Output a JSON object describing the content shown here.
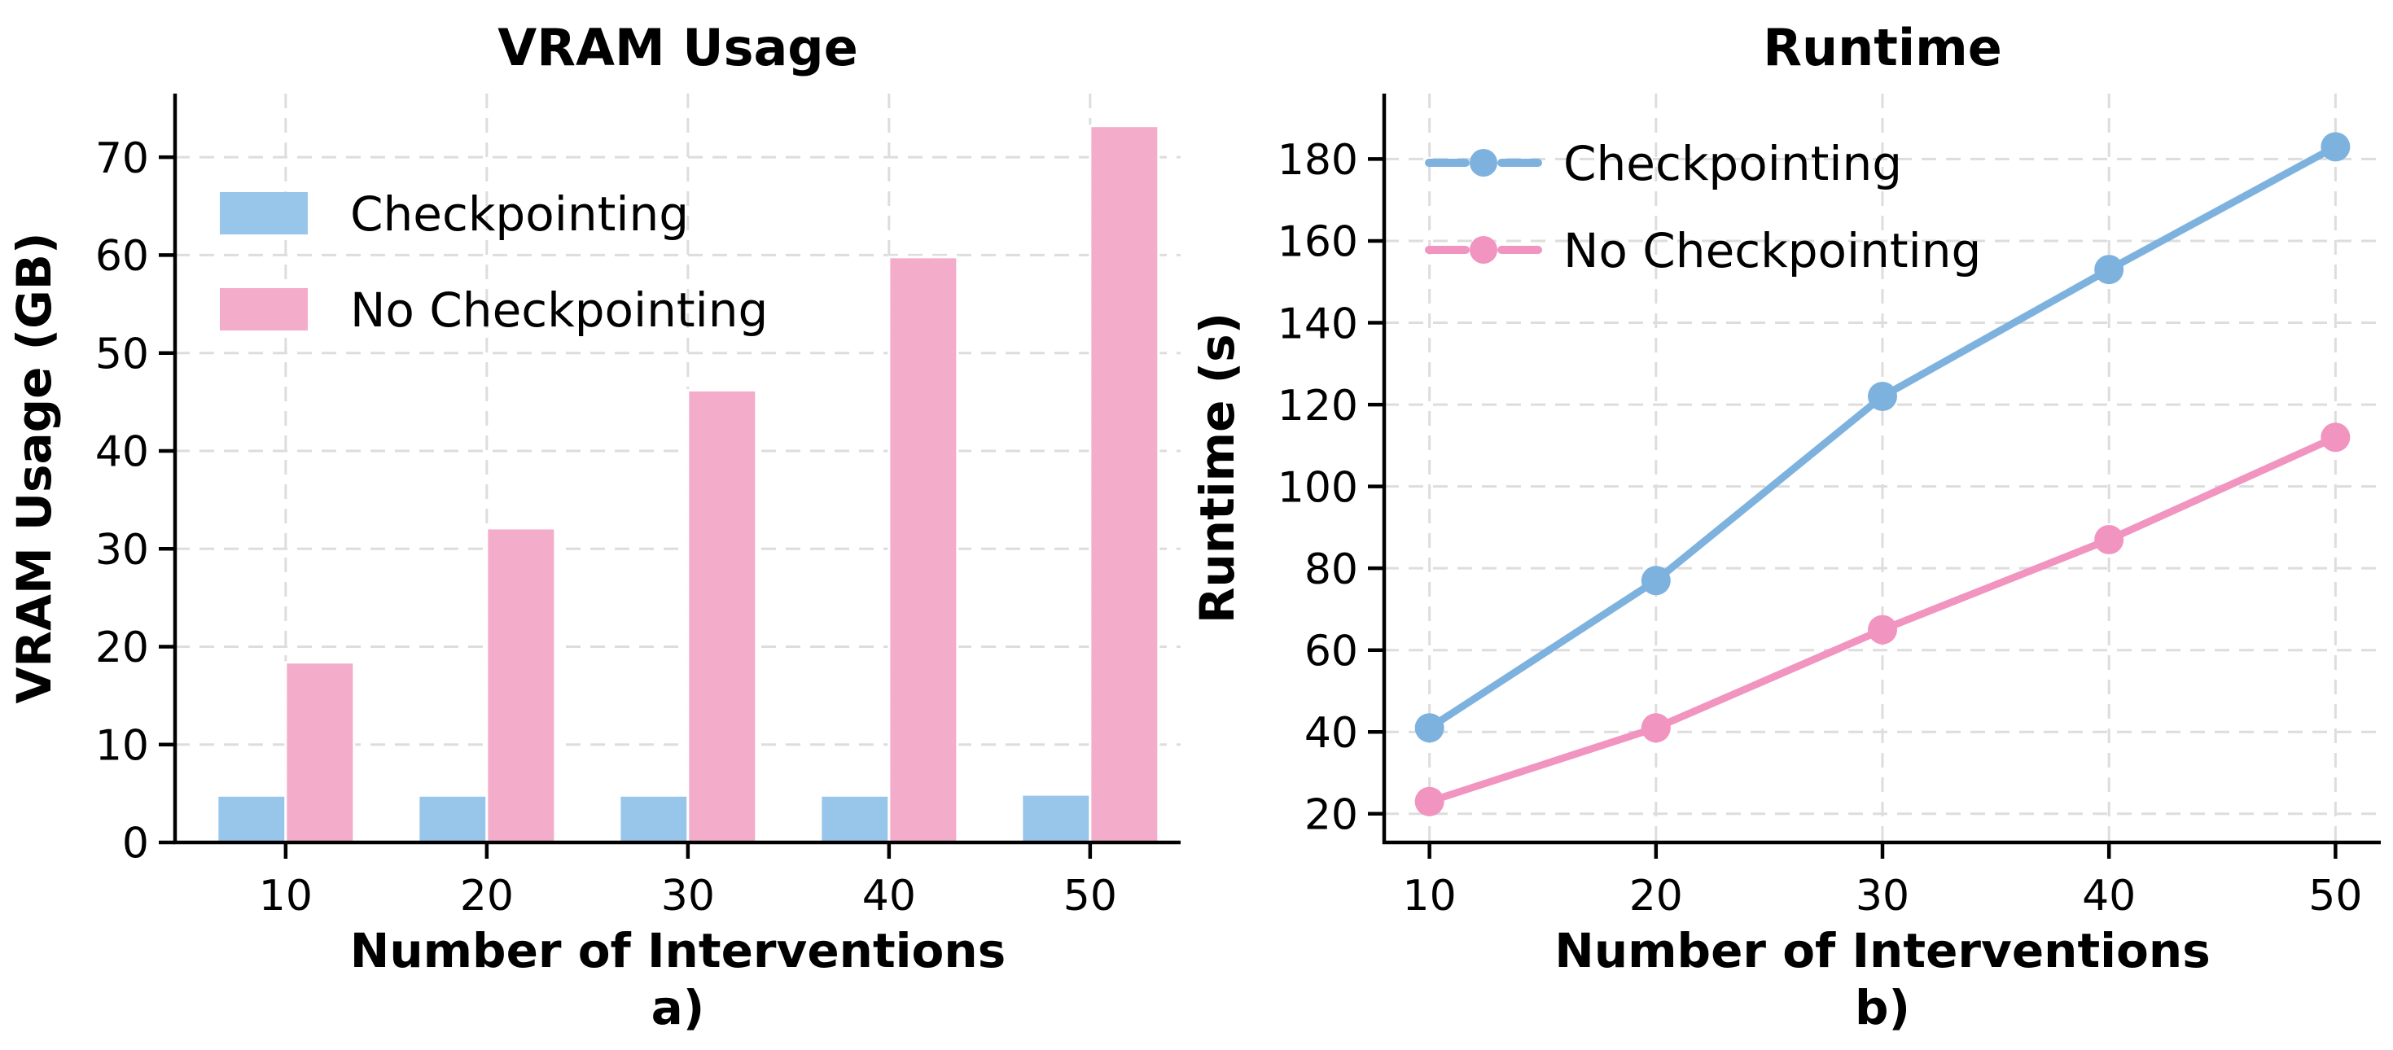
{
  "figure": {
    "background": "#ffffff"
  },
  "colors": {
    "bar_blue": "#97C6EA",
    "bar_pink": "#F3ACCA",
    "line_blue": "#7EB2DE",
    "line_pink": "#F194BF",
    "grid": "#DDDDDD",
    "axis": "#000000",
    "text": "#000000"
  },
  "chart_data": [
    {
      "id": "vram-usage",
      "type": "bar",
      "title": "VRAM Usage",
      "xlabel": "Number of Interventions",
      "ylabel": "VRAM Usage (GB)",
      "caption": "a)",
      "categories": [
        10,
        20,
        30,
        40,
        50
      ],
      "series": [
        {
          "name": "Checkpointing",
          "color": "bar_blue",
          "values": [
            4.8,
            4.8,
            4.8,
            4.8,
            4.9
          ]
        },
        {
          "name": "No Checkpointing",
          "color": "bar_pink",
          "values": [
            18.4,
            32.1,
            46.2,
            59.8,
            73.2
          ]
        }
      ],
      "xlim": [
        4.5,
        54.5
      ],
      "ylim": [
        0,
        76.5
      ],
      "yticks": [
        0,
        10,
        20,
        30,
        40,
        50,
        60,
        70
      ],
      "grid": true,
      "legend": {
        "position": "upper-left",
        "style": "swatch"
      }
    },
    {
      "id": "runtime",
      "type": "line",
      "title": "Runtime",
      "xlabel": "Number of Interventions",
      "ylabel": "Runtime (s)",
      "caption": "b)",
      "x": [
        10,
        20,
        30,
        40,
        50
      ],
      "series": [
        {
          "name": "Checkpointing",
          "color": "line_blue",
          "values": [
            41,
            77,
            122,
            153,
            183
          ]
        },
        {
          "name": "No Checkpointing",
          "color": "line_pink",
          "values": [
            23,
            41,
            65,
            87,
            112
          ]
        }
      ],
      "xlim": [
        8,
        52
      ],
      "ylim": [
        13,
        196
      ],
      "yticks": [
        20,
        40,
        60,
        80,
        100,
        120,
        140,
        160,
        180
      ],
      "grid": true,
      "legend": {
        "position": "upper-left",
        "style": "line-marker"
      }
    }
  ]
}
